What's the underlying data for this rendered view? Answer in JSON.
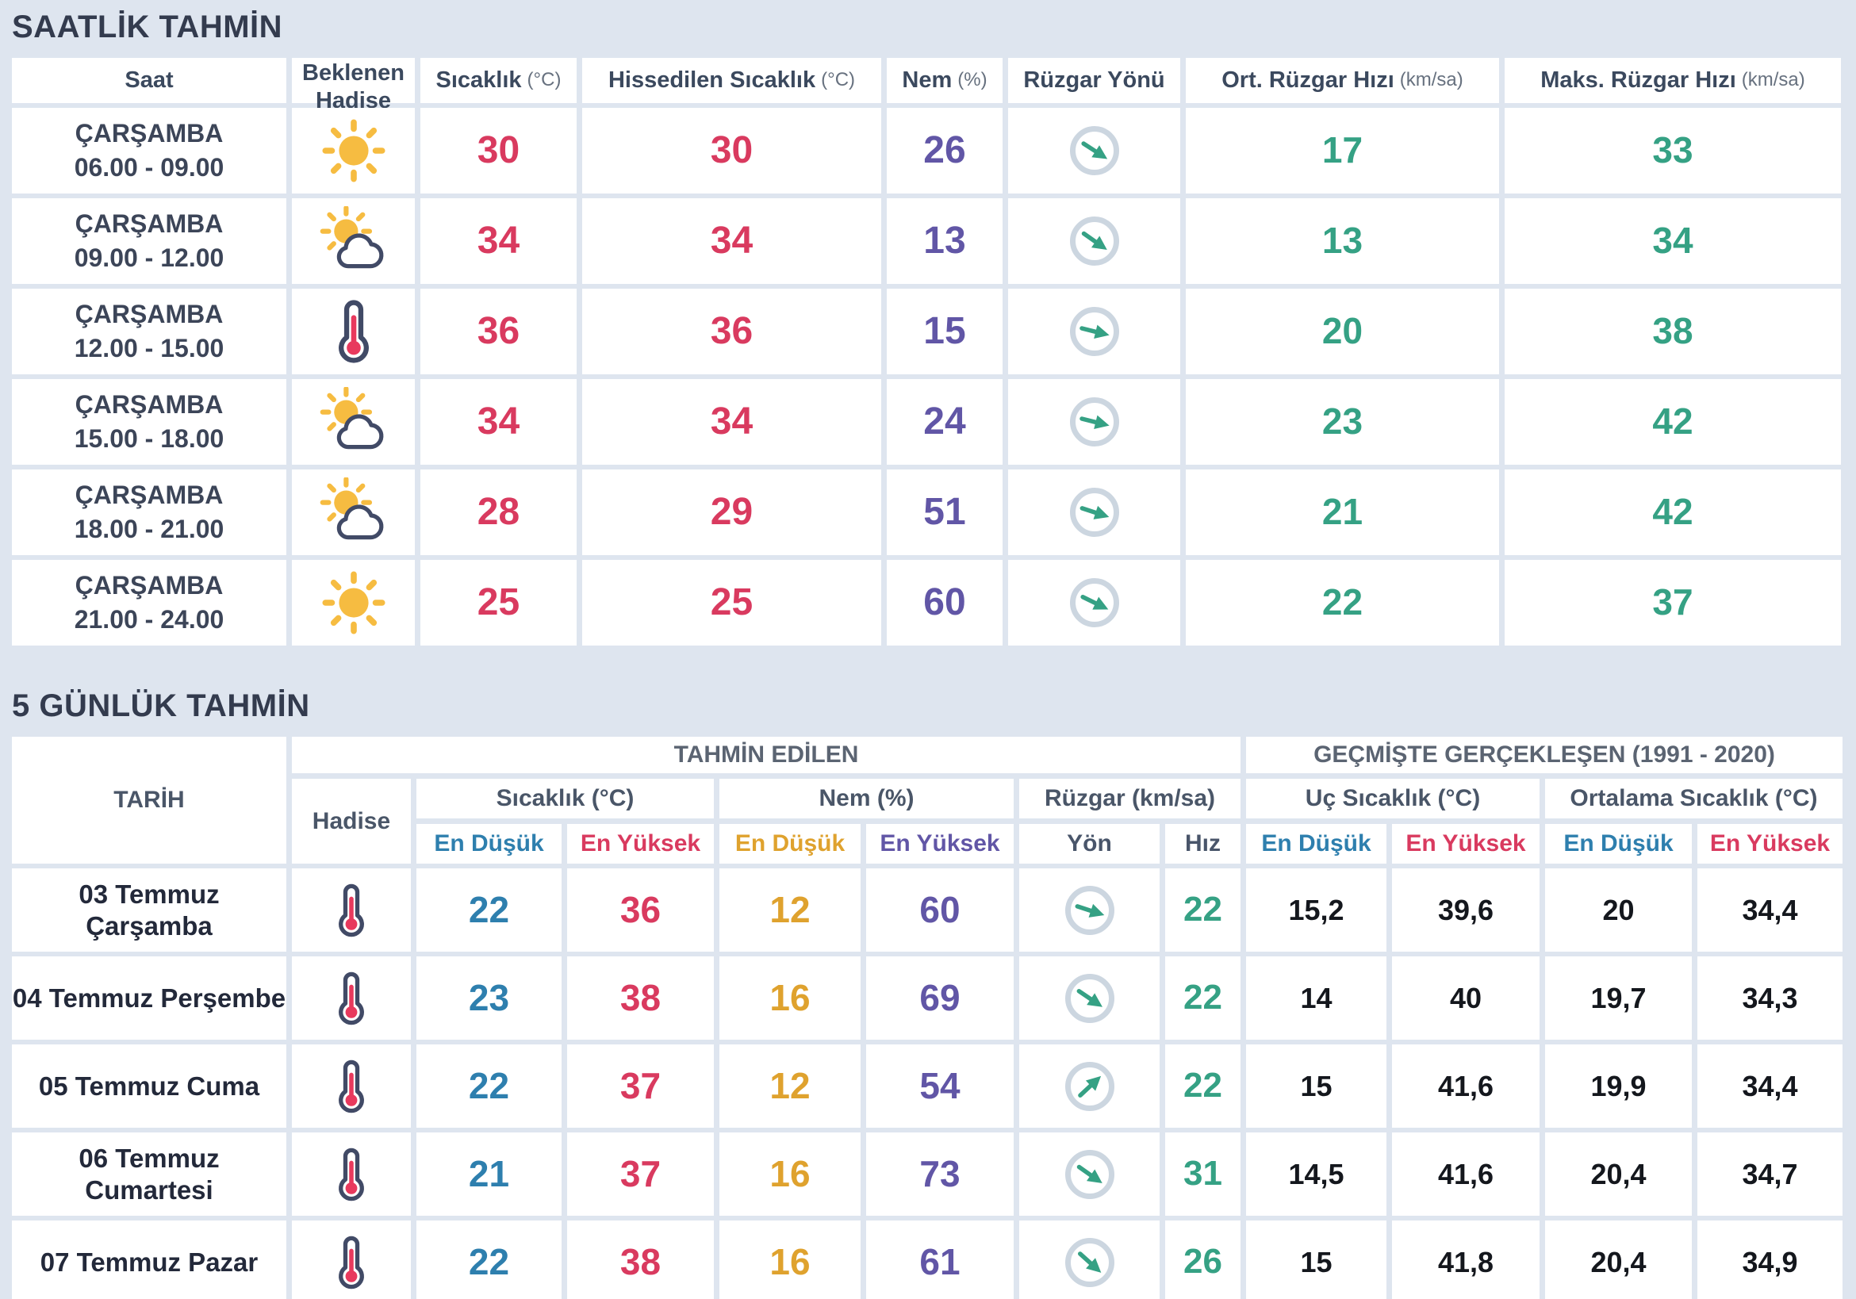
{
  "colors": {
    "red": "#d93a5f",
    "blue": "#2e7fae",
    "orange": "#dfa22e",
    "purple": "#6156a6",
    "green": "#35a184",
    "header": "#3b495e",
    "bg": "#dee5ef",
    "icon_navy": "#414a66",
    "sun_yellow": "#f6bc41"
  },
  "hourly": {
    "title": "SAATLİK TAHMİN",
    "columns": [
      {
        "label": "Saat",
        "unit": ""
      },
      {
        "label": "Beklenen Hadise",
        "unit": ""
      },
      {
        "label": "Sıcaklık",
        "unit": "(°C)"
      },
      {
        "label": "Hissedilen Sıcaklık",
        "unit": "(°C)"
      },
      {
        "label": "Nem",
        "unit": "(%)"
      },
      {
        "label": "Rüzgar Yönü",
        "unit": ""
      },
      {
        "label": "Ort. Rüzgar Hızı",
        "unit": "(km/sa)"
      },
      {
        "label": "Maks. Rüzgar Hızı",
        "unit": "(km/sa)"
      }
    ],
    "rows": [
      {
        "day": "ÇARŞAMBA",
        "hours": "06.00 - 09.00",
        "icon": "sun",
        "temp": "30",
        "feels": "30",
        "humidity": "26",
        "wind_dir_deg": 33,
        "wind_avg": "17",
        "wind_max": "33"
      },
      {
        "day": "ÇARŞAMBA",
        "hours": "09.00 - 12.00",
        "icon": "sun-cloud",
        "temp": "34",
        "feels": "34",
        "humidity": "13",
        "wind_dir_deg": 35,
        "wind_avg": "13",
        "wind_max": "34"
      },
      {
        "day": "ÇARŞAMBA",
        "hours": "12.00 - 15.00",
        "icon": "thermometer",
        "temp": "36",
        "feels": "36",
        "humidity": "15",
        "wind_dir_deg": 14,
        "wind_avg": "20",
        "wind_max": "38"
      },
      {
        "day": "ÇARŞAMBA",
        "hours": "15.00 - 18.00",
        "icon": "sun-cloud",
        "temp": "34",
        "feels": "34",
        "humidity": "24",
        "wind_dir_deg": 14,
        "wind_avg": "23",
        "wind_max": "42"
      },
      {
        "day": "ÇARŞAMBA",
        "hours": "18.00 - 21.00",
        "icon": "sun-cloud",
        "temp": "28",
        "feels": "29",
        "humidity": "51",
        "wind_dir_deg": 18,
        "wind_avg": "21",
        "wind_max": "42"
      },
      {
        "day": "ÇARŞAMBA",
        "hours": "21.00 - 24.00",
        "icon": "sun",
        "temp": "25",
        "feels": "25",
        "humidity": "60",
        "wind_dir_deg": 26,
        "wind_avg": "22",
        "wind_max": "37"
      }
    ]
  },
  "daily": {
    "title": "5 GÜNLÜK TAHMİN",
    "corner": "TARİH",
    "groups": {
      "predicted": "TAHMİN EDİLEN",
      "historical": "GEÇMİŞTE GERÇEKLEŞEN (1991 - 2020)"
    },
    "sub": {
      "hadise": "Hadise",
      "temp": "Sıcaklık (°C)",
      "hum": "Nem (%)",
      "wind": "Rüzgar (km/sa)",
      "extreme": "Uç Sıcaklık (°C)",
      "average": "Ortalama Sıcaklık (°C)"
    },
    "leaf": [
      "En Düşük",
      "En Yüksek",
      "En Düşük",
      "En Yüksek",
      "Yön",
      "Hız",
      "En Düşük",
      "En Yüksek",
      "En Düşük",
      "En Yüksek"
    ],
    "rows": [
      {
        "date": "03 Temmuz Çarşamba",
        "icon": "thermometer",
        "temp_min": "22",
        "temp_max": "36",
        "hum_min": "12",
        "hum_max": "60",
        "wind_dir_deg": 18,
        "wind_speed": "22",
        "ext_min": "15,2",
        "ext_max": "39,6",
        "avg_min": "20",
        "avg_max": "34,4"
      },
      {
        "date": "04 Temmuz Perşembe",
        "icon": "thermometer",
        "temp_min": "23",
        "temp_max": "38",
        "hum_min": "16",
        "hum_max": "69",
        "wind_dir_deg": 34,
        "wind_speed": "22",
        "ext_min": "14",
        "ext_max": "40",
        "avg_min": "19,7",
        "avg_max": "34,3"
      },
      {
        "date": "05 Temmuz Cuma",
        "icon": "thermometer",
        "temp_min": "22",
        "temp_max": "37",
        "hum_min": "12",
        "hum_max": "54",
        "wind_dir_deg": -43,
        "wind_speed": "22",
        "ext_min": "15",
        "ext_max": "41,6",
        "avg_min": "19,9",
        "avg_max": "34,4"
      },
      {
        "date": "06 Temmuz Cumartesi",
        "icon": "thermometer",
        "temp_min": "21",
        "temp_max": "37",
        "hum_min": "16",
        "hum_max": "73",
        "wind_dir_deg": 35,
        "wind_speed": "31",
        "ext_min": "14,5",
        "ext_max": "41,6",
        "avg_min": "20,4",
        "avg_max": "34,7"
      },
      {
        "date": "07 Temmuz Pazar",
        "icon": "thermometer",
        "temp_min": "22",
        "temp_max": "38",
        "hum_min": "16",
        "hum_max": "61",
        "wind_dir_deg": 42,
        "wind_speed": "26",
        "ext_min": "15",
        "ext_max": "41,8",
        "avg_min": "20,4",
        "avg_max": "34,9"
      }
    ]
  }
}
